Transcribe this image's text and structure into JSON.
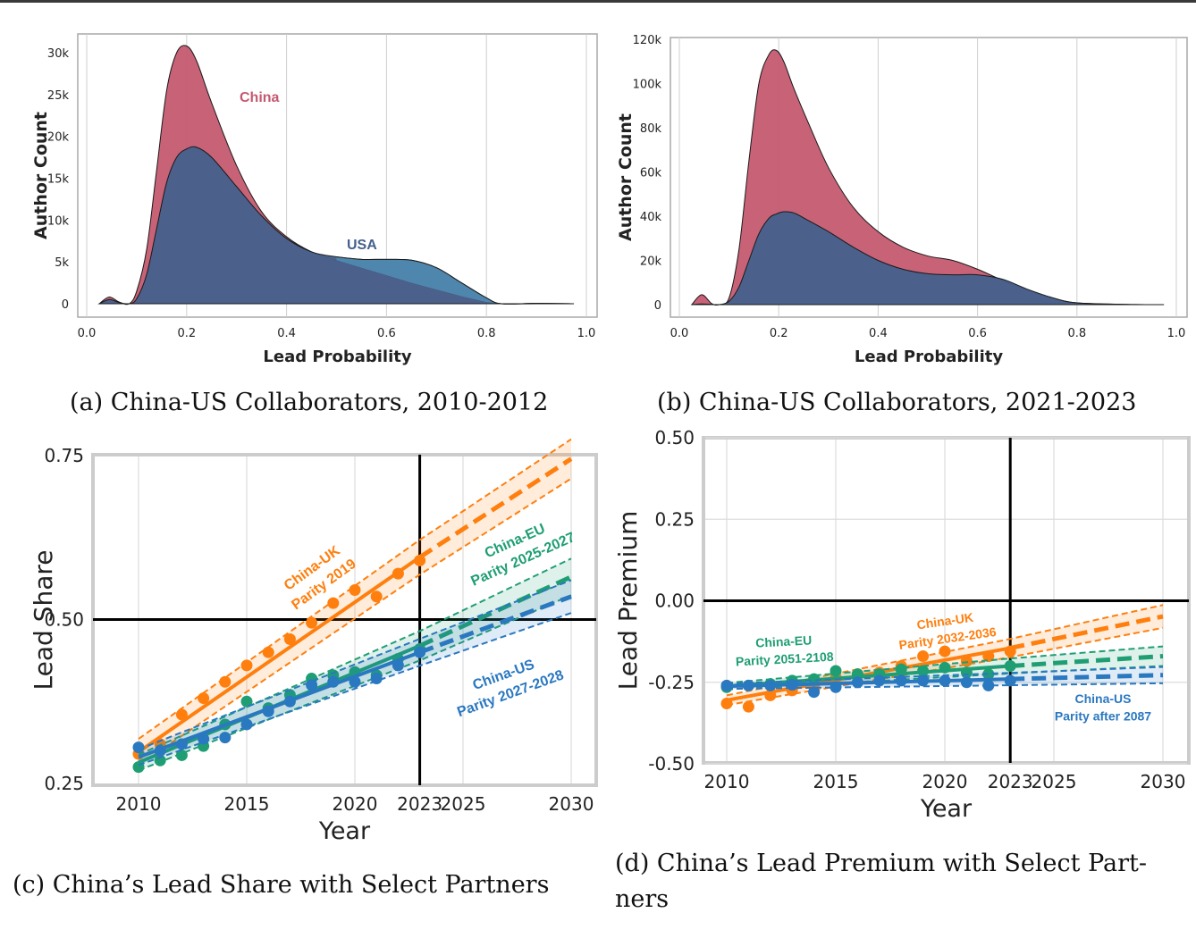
{
  "colors": {
    "china": "#c45a70",
    "usa_dark": "#45608c",
    "usa_light": "#4f86ad",
    "orange": "#ff7f0e",
    "green": "#1f9e74",
    "blue": "#2a78c0",
    "grid": "#d6d6d6",
    "frame": "#c8c8c8",
    "ref_line": "#000000",
    "tick_2023": "#888888"
  },
  "chart_data": [
    {
      "id": "a",
      "type": "area",
      "caption": "(a) China-US Collaborators, 2010-2012",
      "xlabel": "Lead Probability",
      "ylabel": "Author Count",
      "xlim": [
        0.0,
        1.0
      ],
      "ylim": [
        0,
        30000
      ],
      "xticks": [
        "0.0",
        "0.2",
        "0.4",
        "0.6",
        "0.8",
        "1.0"
      ],
      "yticks": [
        "0",
        "5k",
        "10k",
        "15k",
        "20k",
        "25k",
        "30k"
      ],
      "grid": "vertical",
      "annotations": [
        {
          "text": "China",
          "series": "China"
        },
        {
          "text": "USA",
          "series": "USA"
        }
      ],
      "x": [
        0.025,
        0.045,
        0.065,
        0.085,
        0.1,
        0.12,
        0.14,
        0.16,
        0.18,
        0.2,
        0.22,
        0.25,
        0.3,
        0.35,
        0.4,
        0.45,
        0.5,
        0.55,
        0.6,
        0.65,
        0.7,
        0.75,
        0.8,
        0.83,
        0.9,
        0.975
      ],
      "series": [
        {
          "name": "China",
          "values": [
            0,
            800,
            200,
            0,
            1500,
            6500,
            16000,
            25500,
            30000,
            30800,
            29000,
            24000,
            16500,
            11000,
            8000,
            6200,
            5200,
            4300,
            3400,
            2500,
            1700,
            900,
            200,
            0,
            0,
            0
          ]
        },
        {
          "name": "USA",
          "values": [
            0,
            500,
            150,
            0,
            600,
            3500,
            9000,
            14500,
            17500,
            18500,
            18700,
            17500,
            14000,
            10500,
            7800,
            6200,
            5600,
            5300,
            5300,
            5200,
            4300,
            2500,
            700,
            0,
            50,
            0
          ]
        }
      ]
    },
    {
      "id": "b",
      "type": "area",
      "caption": "(b) China-US Collaborators, 2021-2023",
      "xlabel": "Lead Probability",
      "ylabel": "Author Count",
      "xlim": [
        0.0,
        1.0
      ],
      "ylim": [
        0,
        120000
      ],
      "xticks": [
        "0.0",
        "0.2",
        "0.4",
        "0.6",
        "0.8",
        "1.0"
      ],
      "yticks": [
        "0",
        "20k",
        "40k",
        "60k",
        "80k",
        "100k",
        "120k"
      ],
      "grid": "vertical",
      "x": [
        0.025,
        0.045,
        0.065,
        0.08,
        0.1,
        0.12,
        0.14,
        0.16,
        0.18,
        0.195,
        0.21,
        0.23,
        0.26,
        0.3,
        0.35,
        0.4,
        0.45,
        0.5,
        0.55,
        0.6,
        0.65,
        0.7,
        0.75,
        0.8,
        0.9,
        0.975
      ],
      "series": [
        {
          "name": "China",
          "values": [
            0,
            4500,
            500,
            0,
            3000,
            25000,
            65000,
            100000,
            113000,
            115000,
            110000,
            98000,
            82000,
            62000,
            44000,
            33000,
            26000,
            22000,
            20000,
            16000,
            11000,
            6500,
            3000,
            800,
            100,
            0
          ]
        },
        {
          "name": "USA",
          "values": [
            0,
            300,
            100,
            0,
            1500,
            8000,
            20000,
            32000,
            39000,
            41000,
            42000,
            41500,
            38000,
            33000,
            26000,
            20000,
            16000,
            14000,
            13500,
            13500,
            11500,
            7000,
            3200,
            800,
            100,
            0
          ]
        }
      ]
    },
    {
      "id": "c",
      "type": "scatter",
      "caption": "(c) China’s Lead Share with Select Partners",
      "xlabel": "Year",
      "ylabel": "Lead Share",
      "xlim": [
        2010,
        2030
      ],
      "ylim": [
        0.25,
        0.75
      ],
      "xticks": [
        "2010",
        "2015",
        "2020",
        "2023",
        "2025",
        "2030"
      ],
      "yticks": [
        "0.25",
        "0.50",
        "0.75"
      ],
      "reference_lines": {
        "y": 0.5,
        "x": 2023
      },
      "grid": "vertical",
      "years": [
        2010,
        2011,
        2012,
        2013,
        2014,
        2015,
        2016,
        2017,
        2018,
        2019,
        2020,
        2021,
        2022,
        2023
      ],
      "series": [
        {
          "name": "China-UK",
          "color_key": "orange",
          "label": [
            "China-UK",
            "Parity 2019"
          ],
          "values": [
            0.295,
            0.31,
            0.355,
            0.38,
            0.405,
            0.43,
            0.45,
            0.47,
            0.495,
            0.525,
            0.545,
            0.535,
            0.57,
            0.59
          ],
          "fit": {
            "start": 0.298,
            "end_2023": 0.595,
            "end_2030": 0.745,
            "ci_2010": 0.02,
            "ci_2030": 0.03
          }
        },
        {
          "name": "China-EU",
          "color_key": "green",
          "label": [
            "China-EU",
            "Parity 2025-2027"
          ],
          "values": [
            0.275,
            0.285,
            0.293,
            0.307,
            0.34,
            0.375,
            0.365,
            0.385,
            0.41,
            0.415,
            0.42,
            0.415,
            0.44,
            0.455
          ],
          "fit": {
            "start": 0.282,
            "end_2023": 0.46,
            "end_2030": 0.565,
            "ci_2010": 0.012,
            "ci_2030": 0.028
          }
        },
        {
          "name": "China-US",
          "color_key": "blue",
          "label": [
            "China-US",
            "Parity 2027-2028"
          ],
          "values": [
            0.305,
            0.3,
            0.31,
            0.318,
            0.32,
            0.34,
            0.36,
            0.375,
            0.4,
            0.405,
            0.405,
            0.41,
            0.43,
            0.45
          ],
          "fit": {
            "start": 0.29,
            "end_2023": 0.45,
            "end_2030": 0.535,
            "ci_2010": 0.012,
            "ci_2030": 0.025
          }
        }
      ]
    },
    {
      "id": "d",
      "type": "scatter",
      "caption": "(d) China’s Lead Premium with Select Part-",
      "caption_line2": "ners",
      "xlabel": "Year",
      "ylabel": "Lead Premium",
      "xlim": [
        2010,
        2030
      ],
      "ylim": [
        -0.5,
        0.5
      ],
      "xticks": [
        "2010",
        "2015",
        "2020",
        "2023",
        "2025",
        "2030"
      ],
      "yticks": [
        "-0.50",
        "-0.25",
        "0.00",
        "0.25",
        "0.50"
      ],
      "reference_lines": {
        "y": 0.0,
        "x": 2023
      },
      "grid": "both",
      "years": [
        2010,
        2011,
        2012,
        2013,
        2014,
        2015,
        2016,
        2017,
        2018,
        2019,
        2020,
        2021,
        2022,
        2023
      ],
      "series": [
        {
          "name": "China-UK",
          "color_key": "orange",
          "label": [
            "China-UK",
            "Parity 2032-2036"
          ],
          "values": [
            -0.315,
            -0.325,
            -0.29,
            -0.275,
            -0.26,
            -0.235,
            -0.225,
            -0.22,
            -0.2,
            -0.17,
            -0.155,
            -0.185,
            -0.17,
            -0.155
          ],
          "fit": {
            "start": -0.305,
            "end_2023": -0.145,
            "end_2030": -0.048,
            "ci_2010": 0.015,
            "ci_2030": 0.035
          }
        },
        {
          "name": "China-EU",
          "color_key": "green",
          "label": [
            "China-EU",
            "Parity 2051-2108"
          ],
          "values": [
            -0.265,
            -0.26,
            -0.255,
            -0.245,
            -0.24,
            -0.215,
            -0.225,
            -0.225,
            -0.21,
            -0.215,
            -0.205,
            -0.22,
            -0.225,
            -0.2
          ],
          "fit": {
            "start": -0.262,
            "end_2023": -0.2,
            "end_2030": -0.17,
            "ci_2010": 0.01,
            "ci_2030": 0.03
          }
        },
        {
          "name": "China-US",
          "color_key": "blue",
          "label": [
            "China-US",
            "Parity after 2087"
          ],
          "values": [
            -0.26,
            -0.26,
            -0.26,
            -0.258,
            -0.28,
            -0.265,
            -0.25,
            -0.245,
            -0.245,
            -0.245,
            -0.245,
            -0.25,
            -0.26,
            -0.245
          ],
          "fit": {
            "start": -0.262,
            "end_2023": -0.24,
            "end_2030": -0.228,
            "ci_2010": 0.008,
            "ci_2030": 0.025
          }
        }
      ]
    }
  ]
}
